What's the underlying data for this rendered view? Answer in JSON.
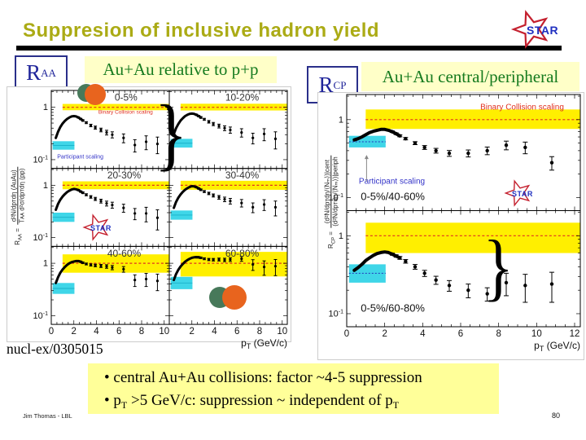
{
  "header": {
    "title": "Suppresion of inclusive hadron yield",
    "author": "Jim Thomas - LBL",
    "page_number": "80"
  },
  "logos": {
    "star_text": "STAR"
  },
  "labels": {
    "raa_main": "R",
    "raa_sub": "AA",
    "rcp_main": "R",
    "rcp_sub": "CP",
    "nucl_ref": "nucl-ex/0305015",
    "brace": "}"
  },
  "summary_box": {
    "line1": "• central Au+Au collisions: factor ~4-5 suppression",
    "line2_pre": "• p",
    "line2_sub1": "T",
    "line2_mid": " >5 GeV/c: suppression ~ independent of p",
    "line2_sub2": "T"
  },
  "colors": {
    "title_olive": "#abab15",
    "heading_green": "#157a1e",
    "navy": "#20259a",
    "band_yellow": "#ffef00",
    "pale_yellow": "#ffffc8",
    "box_yellow": "#ffff99",
    "cyan": "#3fd6e8",
    "red": "#e03020",
    "blue_label": "#3434c8",
    "orange_dot": "#e8641e",
    "green_dot": "#47795a",
    "star_red": "#c4202e",
    "star_blue": "#2030c0"
  },
  "chart_data": [
    {
      "type": "scatter",
      "id": "raa",
      "title": "Au+Au relative to p+p",
      "ylabel_prefix_main": "R",
      "ylabel_prefix_sub": "AA",
      "ylabel_eq": " = ",
      "ylabel_num": "d²N/dpᴛdη (AuAu)",
      "ylabel_den": "Tᴀᴀ d²σ/dpᴛdη (pp)",
      "xlabel_main": "p",
      "xlabel_sub": "T",
      "xlabel_rest": " (GeV/c)",
      "yscale": "log",
      "ylim": [
        0.068,
        2.1
      ],
      "xmax": 10.45,
      "x_ticks": [
        0,
        2,
        4,
        6,
        8,
        10
      ],
      "y_ticks": [
        {
          "v": 1,
          "l": "1"
        },
        {
          "v": 0.1,
          "l": "10",
          "sup": "-1"
        }
      ],
      "cw": 3,
      "mr": 1.6,
      "cap": 2,
      "x": [
        0.4,
        0.6,
        0.8,
        1.0,
        1.2,
        1.4,
        1.6,
        1.8,
        2.0,
        2.2,
        2.4,
        2.6,
        2.8,
        3.1,
        3.5,
        3.9,
        4.4,
        4.9,
        5.4,
        6.4,
        7.4,
        8.4,
        9.4
      ],
      "panels": [
        {
          "label": "0-5%",
          "band_x0": 1,
          "yellow": [
            0.88,
            1.16
          ],
          "cyan": [
            0.155,
            0.225
          ],
          "y": [
            0.26,
            0.34,
            0.42,
            0.49,
            0.55,
            0.6,
            0.64,
            0.67,
            0.68,
            0.67,
            0.64,
            0.6,
            0.56,
            0.51,
            0.45,
            0.41,
            0.37,
            0.33,
            0.3,
            0.26,
            0.19,
            0.22,
            0.2
          ],
          "e": [
            0.01,
            0.01,
            0.01,
            0.01,
            0.012,
            0.012,
            0.014,
            0.015,
            0.016,
            0.016,
            0.017,
            0.018,
            0.02,
            0.022,
            0.025,
            0.028,
            0.03,
            0.034,
            0.04,
            0.05,
            0.05,
            0.065,
            0.07
          ],
          "ann": [
            {
              "t": "0-5%",
              "c": "#333333",
              "fx": 0.73,
              "fy": 0.13,
              "s": 12,
              "a": "end"
            },
            {
              "t": "Binary Collision scaling",
              "c": "#e03020",
              "fx": 0.86,
              "fy": 0.3,
              "s": 6.5,
              "a": "end"
            },
            {
              "t": "Participant scaling",
              "c": "#3434c8",
              "fx": 0.05,
              "fy": 0.87,
              "s": 7,
              "a": "start"
            }
          ]
        },
        {
          "label": "10-20%",
          "band_x0": 1,
          "yellow": [
            0.87,
            1.17
          ],
          "cyan": [
            0.17,
            0.25
          ],
          "y": [
            0.31,
            0.4,
            0.48,
            0.56,
            0.62,
            0.68,
            0.72,
            0.75,
            0.76,
            0.75,
            0.72,
            0.68,
            0.64,
            0.59,
            0.53,
            0.48,
            0.44,
            0.4,
            0.37,
            0.33,
            0.26,
            0.31,
            0.25
          ],
          "e": [
            0.012,
            0.012,
            0.012,
            0.012,
            0.014,
            0.014,
            0.016,
            0.018,
            0.019,
            0.019,
            0.02,
            0.022,
            0.024,
            0.026,
            0.03,
            0.034,
            0.037,
            0.042,
            0.05,
            0.06,
            0.06,
            0.08,
            0.09
          ],
          "ann": [
            {
              "t": "10-20%",
              "c": "#333333",
              "fx": 0.76,
              "fy": 0.13,
              "s": 12,
              "a": "end"
            }
          ]
        },
        {
          "label": "20-30%",
          "band_x0": 1,
          "yellow": [
            0.84,
            1.19
          ],
          "cyan": [
            0.2,
            0.3
          ],
          "y": [
            0.34,
            0.44,
            0.53,
            0.61,
            0.68,
            0.74,
            0.79,
            0.83,
            0.85,
            0.84,
            0.81,
            0.76,
            0.72,
            0.66,
            0.6,
            0.55,
            0.5,
            0.45,
            0.42,
            0.37,
            0.29,
            0.29,
            0.24
          ],
          "e": [
            0.013,
            0.013,
            0.013,
            0.014,
            0.015,
            0.016,
            0.018,
            0.02,
            0.021,
            0.021,
            0.022,
            0.024,
            0.027,
            0.03,
            0.034,
            0.038,
            0.042,
            0.048,
            0.055,
            0.065,
            0.07,
            0.09,
            0.1
          ],
          "ann": [
            {
              "t": "20-30%",
              "c": "#333333",
              "fx": 0.76,
              "fy": 0.13,
              "s": 12,
              "a": "end"
            }
          ]
        },
        {
          "label": "30-40%",
          "band_x0": 1,
          "yellow": [
            0.82,
            1.22
          ],
          "cyan": [
            0.22,
            0.33
          ],
          "y": [
            0.37,
            0.48,
            0.58,
            0.67,
            0.75,
            0.82,
            0.88,
            0.93,
            0.96,
            0.95,
            0.92,
            0.87,
            0.82,
            0.76,
            0.7,
            0.64,
            0.59,
            0.54,
            0.5,
            0.46,
            0.38,
            0.43,
            0.38
          ],
          "e": [
            0.015,
            0.015,
            0.015,
            0.016,
            0.017,
            0.018,
            0.02,
            0.022,
            0.024,
            0.024,
            0.025,
            0.027,
            0.03,
            0.034,
            0.038,
            0.043,
            0.048,
            0.054,
            0.062,
            0.075,
            0.08,
            0.1,
            0.12
          ],
          "ann": [
            {
              "t": "30-40%",
              "c": "#333333",
              "fx": 0.76,
              "fy": 0.13,
              "s": 12,
              "a": "end"
            }
          ]
        },
        {
          "label": "40-60%",
          "band_x0": 1,
          "yellow": [
            0.66,
            1.48
          ],
          "cyan": [
            0.26,
            0.42
          ],
          "y": [
            0.42,
            0.54,
            0.66,
            0.76,
            0.85,
            0.93,
            1.0,
            1.05,
            1.08,
            1.1,
            1.1,
            1.07,
            1.02,
            0.97,
            0.93,
            0.91,
            0.89,
            0.87,
            0.83,
            0.77,
            0.48,
            0.5,
            0.46
          ],
          "e": [
            0.017,
            0.017,
            0.018,
            0.018,
            0.02,
            0.021,
            0.023,
            0.026,
            0.028,
            0.028,
            0.03,
            0.032,
            0.036,
            0.04,
            0.046,
            0.052,
            0.06,
            0.068,
            0.078,
            0.095,
            0.12,
            0.14,
            0.16
          ],
          "ann": [
            {
              "t": "40-60%",
              "c": "#333333",
              "fx": 0.76,
              "fy": 0.13,
              "s": 12,
              "a": "end"
            }
          ]
        },
        {
          "label": "60-80%",
          "band_x0": 1,
          "yellow": [
            0.56,
            1.65
          ],
          "cyan": [
            0.32,
            0.55
          ],
          "y": [
            0.48,
            0.62,
            0.75,
            0.87,
            0.97,
            1.07,
            1.15,
            1.22,
            1.27,
            1.3,
            1.31,
            1.3,
            1.27,
            1.22,
            1.18,
            1.17,
            1.18,
            1.16,
            1.18,
            1.22,
            0.95,
            0.85,
            0.88
          ],
          "e": [
            0.02,
            0.02,
            0.021,
            0.022,
            0.024,
            0.026,
            0.028,
            0.031,
            0.034,
            0.034,
            0.036,
            0.04,
            0.044,
            0.05,
            0.058,
            0.066,
            0.076,
            0.088,
            0.1,
            0.13,
            0.22,
            0.26,
            0.3
          ],
          "ann": [
            {
              "t": "60-80%",
              "c": "#333333",
              "fx": 0.76,
              "fy": 0.13,
              "s": 12,
              "a": "end"
            }
          ]
        }
      ]
    },
    {
      "type": "scatter",
      "id": "rcp",
      "title": "Au+Au central/peripheral",
      "ylabel_prefix_main": "R",
      "ylabel_prefix_sub": "CP",
      "ylabel_eq": " = ",
      "ylabel_num": "(d²N/dpᴛdη/⟨Nₘ⟩)|cent",
      "ylabel_den": "(d²N/dpᴛdη/⟨Nₘ⟩)|periph",
      "xlabel_main": "p",
      "xlabel_sub": "T",
      "xlabel_rest": " (GeV/c)",
      "yscale": "log",
      "ylim": [
        0.068,
        2.1
      ],
      "xmax": 12.3,
      "x_ticks": [
        0,
        2,
        4,
        6,
        8,
        10,
        12
      ],
      "y_ticks": [
        {
          "v": 1,
          "l": "1"
        },
        {
          "v": 0.1,
          "l": "10",
          "sup": "-1"
        }
      ],
      "cw": 4,
      "mr": 2.2,
      "cap": 3,
      "x": [
        0.4,
        0.6,
        0.8,
        1.0,
        1.2,
        1.4,
        1.6,
        1.8,
        2.0,
        2.2,
        2.4,
        2.6,
        2.8,
        3.1,
        3.6,
        4.1,
        4.7,
        5.4,
        6.4,
        7.4,
        8.4,
        9.4,
        10.8
      ],
      "panels": [
        {
          "label": "0-5%/40-60%",
          "band_x0": 1,
          "yellow": [
            0.76,
            1.35
          ],
          "cyan": [
            0.44,
            0.62
          ],
          "cyan_line": 0.52,
          "y": [
            0.55,
            0.57,
            0.6,
            0.64,
            0.68,
            0.71,
            0.73,
            0.75,
            0.75,
            0.73,
            0.7,
            0.66,
            0.62,
            0.57,
            0.5,
            0.44,
            0.4,
            0.37,
            0.37,
            0.4,
            0.47,
            0.44,
            0.28
          ],
          "e": [
            0.01,
            0.01,
            0.01,
            0.01,
            0.01,
            0.011,
            0.012,
            0.013,
            0.014,
            0.015,
            0.016,
            0.017,
            0.018,
            0.02,
            0.022,
            0.025,
            0.028,
            0.032,
            0.038,
            0.045,
            0.06,
            0.075,
            0.055
          ],
          "ann": [
            {
              "t": "Binary Collision scaling",
              "c": "#e03020",
              "fx": 0.93,
              "fy": 0.13,
              "s": 10,
              "a": "end"
            },
            {
              "t": "Participant scaling",
              "c": "#3434c8",
              "fx": 0.052,
              "fy": 0.77,
              "s": 10,
              "a": "start"
            },
            {
              "t": "0-5%/40-60%",
              "c": "#111111",
              "fx": 0.06,
              "fy": 0.91,
              "s": 13,
              "a": "start"
            },
            {
              "arrow": true,
              "fx": 0.085,
              "fy1": 0.75,
              "fy2": 0.52
            }
          ]
        },
        {
          "label": "0-5%/60-80%",
          "band_x0": 1,
          "yellow": [
            0.6,
            1.47
          ],
          "cyan": [
            0.25,
            0.43
          ],
          "cyan_line": 0.33,
          "y": [
            0.36,
            0.39,
            0.43,
            0.48,
            0.52,
            0.56,
            0.59,
            0.61,
            0.62,
            0.61,
            0.58,
            0.55,
            0.52,
            0.47,
            0.4,
            0.33,
            0.27,
            0.23,
            0.2,
            0.18,
            0.25,
            0.23,
            0.24
          ],
          "e": [
            0.01,
            0.01,
            0.01,
            0.011,
            0.012,
            0.013,
            0.014,
            0.015,
            0.016,
            0.017,
            0.018,
            0.02,
            0.022,
            0.025,
            0.028,
            0.03,
            0.032,
            0.036,
            0.04,
            0.035,
            0.08,
            0.09,
            0.1
          ],
          "ann": [
            {
              "t": "0-5%/60-80%",
              "c": "#111111",
              "fx": 0.06,
              "fy": 0.87,
              "s": 13,
              "a": "start"
            }
          ]
        }
      ]
    }
  ]
}
